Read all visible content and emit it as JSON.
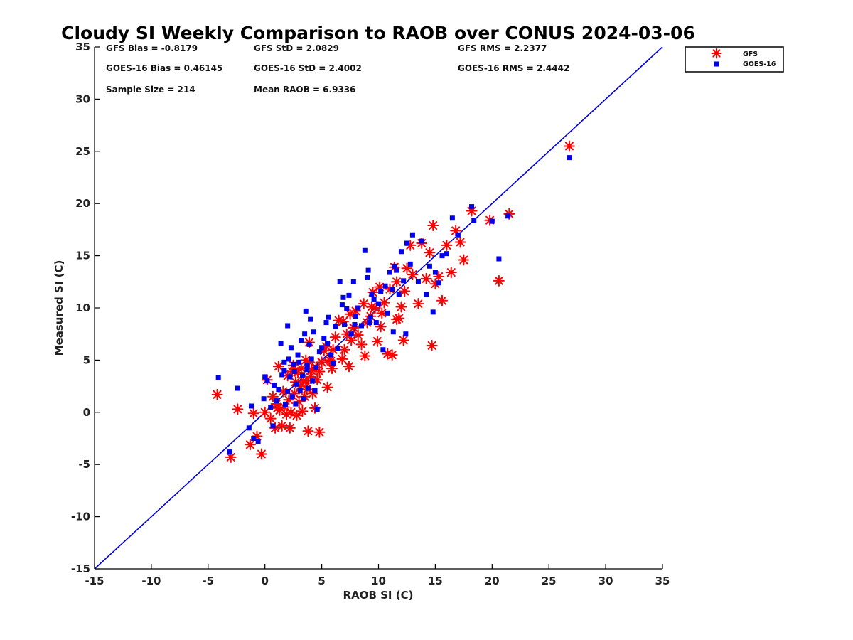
{
  "chart_data": {
    "type": "scatter",
    "title": "Cloudy SI Weekly Comparison to RAOB over CONUS 2024-03-06",
    "xlabel": "RAOB SI (C)",
    "ylabel": "Measured SI (C)",
    "xlim": [
      -15,
      35
    ],
    "ylim": [
      -15,
      35
    ],
    "xticks": [
      -15,
      -10,
      -5,
      0,
      5,
      10,
      15,
      20,
      25,
      30,
      35
    ],
    "yticks": [
      -15,
      -10,
      -5,
      0,
      5,
      10,
      15,
      20,
      25,
      30,
      35
    ],
    "grid": false,
    "legend_position": "outside-top-right",
    "reference_line": {
      "x": [
        -15,
        35
      ],
      "y": [
        -15,
        35
      ],
      "color": "#0000dd"
    },
    "stats": {
      "gfs_bias": "GFS Bias = -0.8179",
      "gfs_std": "GFS StD = 2.0829",
      "gfs_rms": "GFS RMS = 2.2377",
      "goes_bias": "GOES-16 Bias = 0.46145",
      "goes_std": "GOES-16 StD = 2.4002",
      "goes_rms": "GOES-16 RMS = 2.4442",
      "sample_size": "Sample Size = 214",
      "mean_raob": "Mean RAOB = 6.9336"
    },
    "series": [
      {
        "name": "GFS",
        "marker": "asterisk",
        "color": "#ff0000",
        "x": [
          -4.2,
          -3.0,
          -2.4,
          -1.3,
          -1.0,
          -0.7,
          -0.3,
          0.0,
          0.2,
          0.5,
          0.7,
          0.9,
          1.0,
          1.2,
          1.3,
          1.5,
          1.6,
          1.7,
          1.9,
          2.0,
          2.1,
          2.2,
          2.3,
          2.5,
          2.6,
          2.7,
          2.8,
          2.9,
          3.0,
          3.1,
          3.2,
          3.3,
          3.4,
          3.5,
          3.6,
          3.7,
          3.8,
          3.9,
          4.0,
          4.1,
          4.2,
          4.4,
          4.5,
          4.6,
          4.8,
          5.0,
          5.2,
          5.4,
          5.5,
          5.7,
          5.9,
          6.0,
          6.2,
          6.5,
          6.8,
          7.0,
          7.2,
          7.4,
          7.6,
          7.8,
          8.0,
          8.2,
          8.5,
          8.8,
          9.0,
          9.3,
          9.5,
          9.7,
          9.9,
          10.1,
          10.3,
          10.5,
          10.8,
          11.0,
          11.2,
          11.4,
          11.6,
          11.8,
          12.0,
          12.3,
          12.5,
          12.8,
          13.0,
          13.5,
          13.8,
          14.2,
          14.5,
          14.8,
          15.0,
          15.3,
          15.6,
          16.0,
          16.4,
          16.8,
          17.2,
          17.5,
          18.2,
          19.8,
          20.6,
          21.5,
          26.8,
          7.5,
          14.7,
          10.2,
          11.6,
          4.8,
          3.7,
          5.8,
          8.7,
          2.4,
          1.1,
          3.9,
          6.9,
          9.4,
          12.2
        ],
        "y": [
          1.7,
          -4.3,
          0.3,
          -3.1,
          -0.1,
          -2.3,
          -4.0,
          0.0,
          3.1,
          -0.6,
          1.5,
          -1.5,
          0.8,
          4.4,
          0.2,
          -1.3,
          2.0,
          0.5,
          -0.2,
          3.5,
          1.2,
          -1.5,
          0.0,
          4.5,
          1.8,
          2.9,
          -0.3,
          3.8,
          1.0,
          2.5,
          4.2,
          0.1,
          3.0,
          1.5,
          5.0,
          2.2,
          -1.8,
          6.7,
          3.4,
          4.0,
          1.8,
          0.4,
          4.3,
          3.1,
          -1.9,
          4.8,
          5.9,
          6.3,
          2.4,
          5.0,
          4.2,
          6.0,
          7.2,
          8.8,
          5.1,
          6.0,
          7.5,
          4.4,
          6.9,
          8.1,
          9.7,
          7.4,
          6.5,
          5.4,
          8.6,
          9.2,
          11.5,
          10.0,
          6.8,
          12.0,
          9.5,
          10.5,
          5.6,
          11.8,
          5.5,
          13.9,
          12.5,
          9.0,
          10.1,
          11.6,
          13.8,
          16.0,
          13.2,
          10.4,
          16.2,
          12.8,
          15.3,
          17.9,
          12.3,
          13.0,
          10.7,
          16.0,
          13.4,
          17.4,
          16.3,
          14.6,
          19.3,
          18.4,
          12.6,
          19.0,
          25.5,
          9.4,
          6.4,
          8.2,
          8.9,
          3.9,
          2.8,
          4.9,
          10.4,
          3.9,
          0.4,
          4.8,
          8.7,
          10.1,
          6.9
        ]
      },
      {
        "name": "GOES-16",
        "marker": "square",
        "color": "#0000ee",
        "x": [
          -4.1,
          -3.1,
          -2.4,
          -1.4,
          -1.2,
          -1.0,
          -0.6,
          -0.1,
          0.0,
          0.2,
          0.5,
          0.7,
          0.8,
          1.0,
          1.2,
          1.4,
          1.5,
          1.7,
          1.8,
          2.0,
          2.1,
          2.2,
          2.3,
          2.4,
          2.5,
          2.6,
          2.7,
          2.8,
          2.9,
          3.0,
          3.1,
          3.2,
          3.3,
          3.4,
          3.5,
          3.6,
          3.7,
          3.8,
          3.9,
          4.0,
          4.1,
          4.2,
          4.3,
          4.5,
          4.6,
          4.8,
          5.0,
          5.2,
          5.4,
          5.6,
          5.8,
          6.0,
          6.2,
          6.4,
          6.6,
          6.8,
          7.0,
          7.2,
          7.4,
          7.6,
          7.8,
          8.0,
          8.2,
          8.5,
          8.8,
          9.0,
          9.2,
          9.4,
          9.6,
          9.8,
          10.0,
          10.2,
          10.4,
          10.6,
          10.8,
          11.0,
          11.2,
          11.4,
          11.6,
          11.8,
          12.0,
          12.2,
          12.5,
          12.8,
          13.0,
          13.5,
          13.8,
          14.2,
          14.5,
          14.8,
          15.0,
          15.3,
          15.6,
          16.0,
          16.5,
          17.0,
          18.2,
          18.4,
          20.0,
          20.6,
          21.4,
          26.8,
          2.0,
          3.7,
          5.5,
          7.9,
          9.1,
          9.3,
          11.3,
          12.4,
          1.7,
          4.4,
          6.9
        ],
        "y": [
          3.3,
          -3.8,
          2.3,
          -1.5,
          0.6,
          -2.5,
          -2.8,
          1.3,
          3.4,
          3.0,
          0.5,
          -1.3,
          2.6,
          1.1,
          2.2,
          6.6,
          3.6,
          4.8,
          0.7,
          2.0,
          5.1,
          3.4,
          6.2,
          1.5,
          4.6,
          3.9,
          0.8,
          2.7,
          5.5,
          4.8,
          2.1,
          6.9,
          3.5,
          1.3,
          7.5,
          9.7,
          4.1,
          2.3,
          6.5,
          8.9,
          5.1,
          3.0,
          7.7,
          4.3,
          0.3,
          5.8,
          6.2,
          7.1,
          8.6,
          9.1,
          5.5,
          4.7,
          8.2,
          6.1,
          12.5,
          10.3,
          8.4,
          9.9,
          11.2,
          7.5,
          12.5,
          9.2,
          10.0,
          8.3,
          15.5,
          12.9,
          8.6,
          11.3,
          10.8,
          8.6,
          10.4,
          11.6,
          6.0,
          12.1,
          9.5,
          13.4,
          11.8,
          14.0,
          13.6,
          11.3,
          15.4,
          12.6,
          16.2,
          14.2,
          17.0,
          12.5,
          16.4,
          11.3,
          14.0,
          9.6,
          13.4,
          12.4,
          15.0,
          15.2,
          18.6,
          17.0,
          19.7,
          18.4,
          18.3,
          14.7,
          18.8,
          24.4,
          8.3,
          4.5,
          6.6,
          8.4,
          13.6,
          9.1,
          7.7,
          7.5,
          4.0,
          2.1,
          11.0
        ]
      }
    ]
  }
}
